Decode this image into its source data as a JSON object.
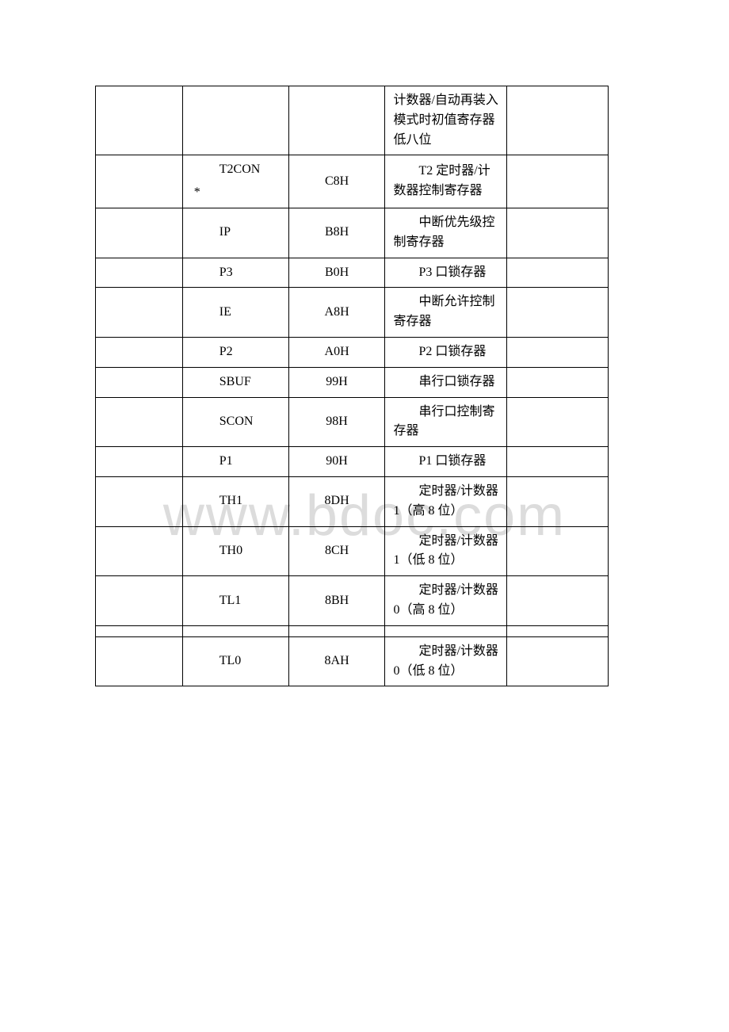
{
  "watermark": "www.bdoc.com",
  "table": {
    "columns": {
      "col1_width": 110,
      "col2_width": 134,
      "col3_width": 122,
      "col4_width": 154,
      "col5_width": 128
    },
    "border_color": "#000000",
    "background_color": "#ffffff",
    "font_size": 16,
    "text_color": "#000000",
    "watermark_color": "#dcdcdc",
    "rows": [
      {
        "c1": "",
        "c2": "",
        "c3": "",
        "c4_indent": "",
        "c4_rest": "计数器/自动再装入模式时初值寄存器低八位",
        "c5": ""
      },
      {
        "c1": "",
        "c2": "T2CON",
        "c2_suffix": "*",
        "c3": "C8H",
        "c4_indent": "T2 定时",
        "c4_rest": "器/计数器控制寄存器",
        "c5": ""
      },
      {
        "c1": "",
        "c2": "IP",
        "c3": "B8H",
        "c4_indent": "中断优",
        "c4_rest": "先级控制寄存器",
        "c5": ""
      },
      {
        "c1": "",
        "c2": "P3",
        "c3": "B0H",
        "c4_indent": "P3 口锁",
        "c4_rest": "存器",
        "c5": ""
      },
      {
        "c1": "",
        "c2": "IE",
        "c3": "A8H",
        "c4_indent": "中断允",
        "c4_rest": "许控制寄存器",
        "c5": ""
      },
      {
        "c1": "",
        "c2": "P2",
        "c3": "A0H",
        "c4_indent": "P2 口锁",
        "c4_rest": "存器",
        "c5": ""
      },
      {
        "c1": "",
        "c2": "SBUF",
        "c3": "99H",
        "c4_indent": "串行口",
        "c4_rest": "锁存器",
        "c5": ""
      },
      {
        "c1": "",
        "c2": "SCON",
        "c3": "98H",
        "c4_indent": "串行口",
        "c4_rest": "控制寄存器",
        "c5": ""
      },
      {
        "c1": "",
        "c2": "P1",
        "c3": "90H",
        "c4_indent": "P1 口锁",
        "c4_rest": "存器",
        "c5": ""
      },
      {
        "c1": "",
        "c2": "TH1",
        "c3": "8DH",
        "c4_indent": "定时器/",
        "c4_rest": "计数器 1（高 8 位）",
        "c5": ""
      },
      {
        "c1": "",
        "c2": "TH0",
        "c3": "8CH",
        "c4_indent": "定时器/",
        "c4_rest": "计数器 1（低 8 位）",
        "c5": ""
      },
      {
        "c1": "",
        "c2": "TL1",
        "c3": "8BH",
        "c4_indent": "定时器/",
        "c4_rest": "计数器 0（高 8 位）",
        "c5": ""
      },
      {
        "spacer": true
      },
      {
        "c1": "",
        "c2": "TL0",
        "c3": "8AH",
        "c4_indent": "定时器/",
        "c4_rest": "计数器 0（低 8 位）",
        "c5": ""
      }
    ]
  }
}
